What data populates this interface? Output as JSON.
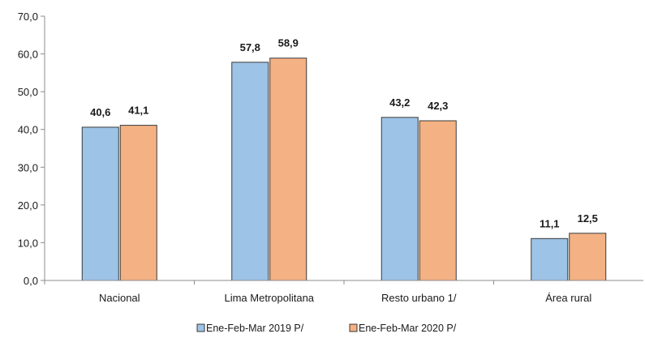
{
  "chart_data": {
    "type": "bar",
    "title": "",
    "xlabel": "",
    "ylabel": "",
    "ylim": [
      0,
      70
    ],
    "yticks": [
      "0,0",
      "10,0",
      "20,0",
      "30,0",
      "40,0",
      "50,0",
      "60,0",
      "70,0"
    ],
    "grid": false,
    "legend_position": "bottom-center",
    "categories": [
      "Nacional",
      "Lima Metropolitana",
      "Resto urbano 1/",
      "Área rural"
    ],
    "series": [
      {
        "name": "Ene-Feb-Mar 2019 P/",
        "color": "#9dc3e6",
        "values": [
          40.6,
          57.8,
          43.2,
          11.1
        ],
        "labels": [
          "40,6",
          "57,8",
          "43,2",
          "11,1"
        ]
      },
      {
        "name": "Ene-Feb-Mar 2020 P/",
        "color": "#f4b183",
        "values": [
          41.1,
          58.9,
          42.3,
          12.5
        ],
        "labels": [
          "41,1",
          "58,9",
          "42,3",
          "12,5"
        ]
      }
    ]
  }
}
